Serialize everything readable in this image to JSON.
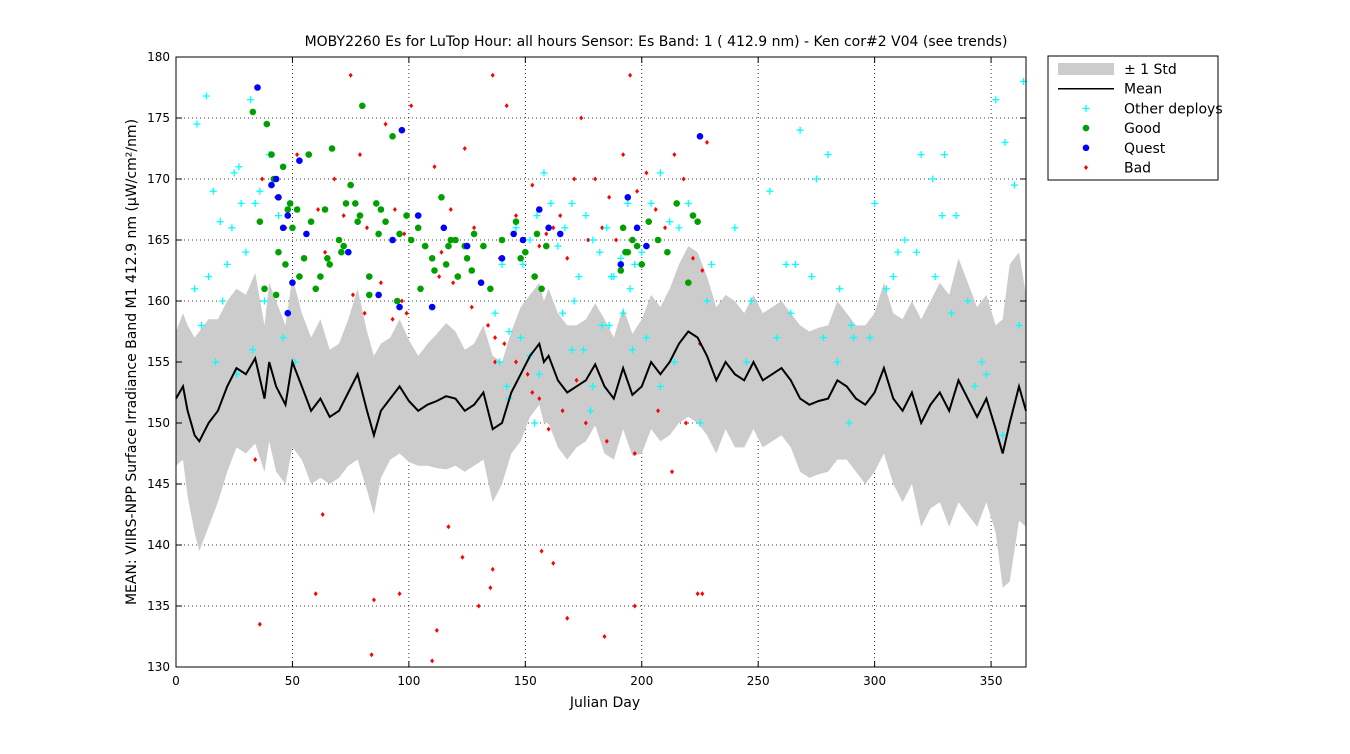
{
  "chart_data": {
    "type": "scatter",
    "title": "MOBY2260   Es for LuTop  Hour: all hours  Sensor: Es Band: 1 ( 412.9 nm)  - Ken cor#2 V04 (see trends)",
    "xlabel": "Julian Day",
    "ylabel": "MEAN: VIIRS-NPP Surface Irradiance Band M1 412.9 nm (µW/cm²/nm)",
    "xlim": [
      0,
      365
    ],
    "ylim": [
      130,
      180
    ],
    "xticks": [
      0,
      50,
      100,
      150,
      200,
      250,
      300,
      350
    ],
    "yticks": [
      130,
      135,
      140,
      145,
      150,
      155,
      160,
      165,
      170,
      175,
      180
    ],
    "grid": "dotted",
    "legend_position": "outside-top-right",
    "legend": [
      {
        "key": "std",
        "label": "± 1 Std",
        "color": "#cccccc",
        "marker": "band"
      },
      {
        "key": "mean",
        "label": "Mean",
        "color": "#000000",
        "marker": "line"
      },
      {
        "key": "other",
        "label": "Other deploys",
        "color": "#00ffff",
        "marker": "plus"
      },
      {
        "key": "good",
        "label": "Good",
        "color": "#00a000",
        "marker": "dot"
      },
      {
        "key": "quest",
        "label": "Quest",
        "color": "#0000ff",
        "marker": "dot"
      },
      {
        "key": "bad",
        "label": "Bad",
        "color": "#ff0000",
        "marker": "diamond"
      }
    ],
    "mean_std": {
      "x": [
        0,
        3,
        5,
        8,
        10,
        14,
        18,
        22,
        26,
        30,
        34,
        38,
        40,
        43,
        47,
        50,
        54,
        58,
        62,
        66,
        70,
        74,
        78,
        82,
        85,
        88,
        92,
        96,
        100,
        104,
        108,
        112,
        116,
        120,
        124,
        128,
        132,
        136,
        140,
        144,
        148,
        152,
        156,
        158,
        160,
        164,
        168,
        172,
        176,
        180,
        184,
        188,
        192,
        196,
        200,
        204,
        208,
        212,
        216,
        220,
        224,
        228,
        232,
        236,
        240,
        244,
        248,
        252,
        256,
        260,
        264,
        268,
        272,
        276,
        280,
        284,
        288,
        292,
        296,
        300,
        304,
        308,
        312,
        316,
        320,
        324,
        328,
        332,
        336,
        340,
        344,
        348,
        352,
        355,
        358,
        362,
        365
      ],
      "mean": [
        152,
        153,
        151,
        149,
        148.5,
        150,
        151,
        153,
        154.5,
        154,
        155.3,
        152,
        155,
        153,
        151.5,
        155,
        153,
        151,
        152,
        150.5,
        151,
        152.5,
        154,
        151,
        149,
        151,
        152,
        153,
        151.8,
        151,
        151.5,
        151.8,
        152.2,
        152,
        151,
        151.5,
        152.5,
        149.5,
        150,
        152.5,
        154,
        155.5,
        156.5,
        155,
        155.5,
        153.5,
        152.5,
        153,
        153.5,
        154.8,
        153,
        152,
        154.5,
        152.3,
        153,
        155,
        154,
        155,
        156.5,
        157.5,
        157,
        155.5,
        153.5,
        155,
        154,
        153.5,
        155,
        153.5,
        154,
        154.5,
        153.5,
        152,
        151.5,
        151.8,
        152,
        153.5,
        153,
        152,
        151.5,
        152.5,
        154.5,
        152,
        151,
        152.5,
        150,
        151.5,
        152.5,
        151,
        153.5,
        152,
        150.5,
        152,
        149.5,
        147.5,
        150,
        153,
        151
      ],
      "std": [
        5.5,
        6,
        7,
        8,
        9,
        8.5,
        7.5,
        7,
        6.5,
        6.5,
        7,
        6,
        6.5,
        7,
        6.5,
        7,
        6,
        6,
        6.5,
        5.5,
        5.5,
        6,
        7,
        6.5,
        6.5,
        5.5,
        5,
        5.5,
        5,
        4.5,
        5,
        5.5,
        6,
        5.5,
        5,
        5,
        5.5,
        6,
        5,
        5,
        5.5,
        5,
        5,
        5,
        5.5,
        5.5,
        5.5,
        5,
        5,
        5,
        5.5,
        5,
        5,
        5,
        5.5,
        5.5,
        5.5,
        6,
        6.5,
        7,
        7,
        6.5,
        6,
        5.5,
        6,
        5.5,
        5.5,
        5.5,
        5.5,
        5.5,
        5.5,
        6,
        6,
        6,
        6,
        6.5,
        6,
        6,
        6.5,
        6.5,
        7,
        7,
        7.5,
        7.5,
        8.5,
        8.5,
        9,
        9.5,
        10,
        9.5,
        9,
        8.5,
        8.5,
        11,
        13,
        11,
        9.5
      ]
    },
    "series": [
      {
        "key": "bad",
        "x": [
          37,
          43,
          47,
          52,
          56,
          61,
          64,
          68,
          72,
          75,
          79,
          82,
          86,
          90,
          94,
          98,
          101,
          104,
          107,
          111,
          114,
          118,
          121,
          124,
          128,
          132,
          136,
          139,
          142,
          146,
          149,
          153,
          156,
          159,
          162,
          165,
          168,
          171,
          174,
          177,
          180,
          183,
          186,
          189,
          192,
          195,
          198,
          202,
          206,
          210,
          214,
          218,
          222,
          226,
          228,
          76,
          81,
          88,
          93,
          97,
          99,
          113,
          119,
          127,
          134,
          137,
          141,
          146,
          151,
          156,
          160,
          166,
          172,
          176,
          185,
          197,
          207,
          213,
          219,
          225,
          34,
          36,
          60,
          63,
          84,
          85,
          96,
          110,
          112,
          117,
          123,
          130,
          135,
          136,
          157,
          162,
          168,
          184,
          197,
          224,
          226,
          137,
          153
        ],
        "y": [
          170,
          168.5,
          166,
          172,
          165.5,
          167.5,
          164,
          170,
          167,
          178.5,
          172,
          166,
          168,
          174.5,
          167.5,
          165.5,
          176,
          166,
          164.5,
          171,
          164,
          167.5,
          162,
          172.5,
          166,
          164.5,
          178.5,
          163.5,
          176,
          167,
          165,
          169.5,
          164.5,
          165.5,
          166,
          167,
          163.5,
          170,
          175,
          165,
          170,
          166,
          168.5,
          165,
          172,
          178.5,
          169,
          170.5,
          167.5,
          166,
          172,
          170,
          163.5,
          162.5,
          173,
          160.5,
          159,
          161.5,
          158.5,
          160,
          159,
          162,
          161.5,
          159.5,
          158,
          157,
          156.5,
          155,
          154,
          152,
          149.5,
          151,
          153.5,
          150,
          148.5,
          147.5,
          151,
          146,
          150,
          156.5,
          147,
          133.5,
          136,
          142.5,
          131,
          135.5,
          136,
          130.5,
          133,
          141.5,
          139,
          135,
          136.5,
          138,
          139.5,
          138.5,
          134,
          132.5,
          135,
          136,
          136,
          155,
          152.5
        ]
      },
      {
        "key": "other",
        "x": [
          9,
          13,
          16,
          19,
          22,
          25,
          28,
          32,
          36,
          40,
          44,
          8,
          14,
          20,
          24,
          27,
          30,
          34,
          46,
          51,
          137,
          140,
          143,
          146,
          149,
          152,
          155,
          158,
          161,
          164,
          167,
          170,
          173,
          176,
          179,
          182,
          185,
          188,
          191,
          194,
          197,
          200,
          204,
          208,
          212,
          216,
          220,
          139,
          143,
          148,
          152,
          156,
          166,
          171,
          175,
          179,
          183,
          187,
          192,
          196,
          202,
          208,
          214,
          225,
          230,
          240,
          255,
          262,
          268,
          275,
          280,
          285,
          290,
          300,
          305,
          310,
          320,
          325,
          330,
          335,
          340,
          348,
          352,
          356,
          360,
          362,
          364,
          247,
          258,
          266,
          273,
          284,
          291,
          298,
          308,
          318,
          326,
          333,
          343,
          355,
          11,
          17,
          26,
          33,
          38,
          142,
          154,
          170,
          178,
          186,
          195,
          228,
          245,
          264,
          278,
          289,
          313,
          329,
          346
        ],
        "y": [
          174.5,
          176.8,
          169,
          166.5,
          163,
          170.5,
          168,
          176.5,
          169,
          172,
          167,
          161,
          162,
          160,
          166,
          171,
          164,
          168,
          157,
          155,
          159,
          163,
          157.5,
          166,
          163,
          165,
          167,
          170.5,
          168,
          164.5,
          166,
          168,
          162,
          167,
          165,
          164,
          166,
          162,
          163.5,
          168,
          163,
          164,
          168,
          170.5,
          166.5,
          166,
          168,
          155,
          152,
          157,
          155.5,
          154,
          159,
          160,
          156,
          153,
          158,
          162,
          159,
          156,
          157,
          153,
          155,
          150,
          163,
          166,
          169,
          163,
          174,
          170,
          172,
          161,
          158,
          168,
          161,
          164,
          172,
          170,
          172,
          167,
          160,
          154,
          176.5,
          173,
          169.5,
          158,
          178,
          160,
          157,
          163,
          162,
          155,
          157,
          157,
          162,
          164,
          162,
          159,
          153,
          149,
          158,
          155,
          154,
          156,
          160,
          153,
          150,
          156,
          151,
          158,
          161,
          160,
          155,
          159,
          157,
          150,
          165,
          167,
          155
        ]
      },
      {
        "key": "good",
        "x": [
          33,
          36,
          39,
          41,
          44,
          46,
          48,
          50,
          52,
          55,
          58,
          62,
          65,
          67,
          70,
          73,
          75,
          78,
          80,
          83,
          86,
          90,
          93,
          96,
          101,
          104,
          107,
          110,
          114,
          117,
          120,
          124,
          128,
          132,
          140,
          146,
          150,
          154,
          159,
          192,
          194,
          196,
          198,
          200,
          203,
          207,
          211,
          215,
          222,
          224,
          38,
          43,
          47,
          53,
          60,
          66,
          72,
          77,
          83,
          88,
          95,
          105,
          111,
          116,
          121,
          127,
          135,
          148,
          157,
          193,
          42,
          49,
          57,
          64,
          71,
          79,
          87,
          99,
          118,
          125,
          155,
          191,
          220
        ],
        "y": [
          175.5,
          166.5,
          174.5,
          172,
          164,
          171,
          167.5,
          166,
          167.5,
          163.5,
          166.5,
          162,
          163.5,
          172.5,
          165,
          168,
          169.5,
          166.5,
          176,
          162,
          168,
          166.5,
          173.5,
          165.5,
          165,
          166,
          164.5,
          163.5,
          168.5,
          164.5,
          165,
          164.5,
          165.5,
          164.5,
          165,
          166.5,
          164,
          162,
          164.5,
          166,
          164,
          165,
          164.5,
          163,
          166.5,
          165,
          164,
          168,
          167,
          166.5,
          161,
          160.5,
          163,
          162,
          161,
          163,
          164.5,
          168,
          160.5,
          167.5,
          160,
          161,
          162.5,
          163,
          162,
          162.5,
          161,
          163.5,
          161,
          164,
          170,
          168,
          172,
          167.5,
          164,
          167,
          165.5,
          167,
          165,
          163.5,
          165.5,
          162.5,
          161.5
        ]
      },
      {
        "key": "quest",
        "x": [
          35,
          41,
          43,
          44,
          46,
          48,
          50,
          53,
          56,
          74,
          87,
          93,
          97,
          104,
          110,
          115,
          125,
          131,
          140,
          145,
          149,
          156,
          160,
          165,
          191,
          194,
          198,
          202,
          225,
          48,
          96
        ],
        "y": [
          177.5,
          169.5,
          170,
          168.5,
          166,
          167,
          161.5,
          171.5,
          165.5,
          164,
          160.5,
          165,
          174,
          167,
          159.5,
          166,
          164.5,
          161.5,
          163.5,
          165.5,
          165,
          167.5,
          166,
          165.5,
          163,
          168.5,
          166,
          164.5,
          173.5,
          159,
          159.5
        ]
      }
    ]
  }
}
